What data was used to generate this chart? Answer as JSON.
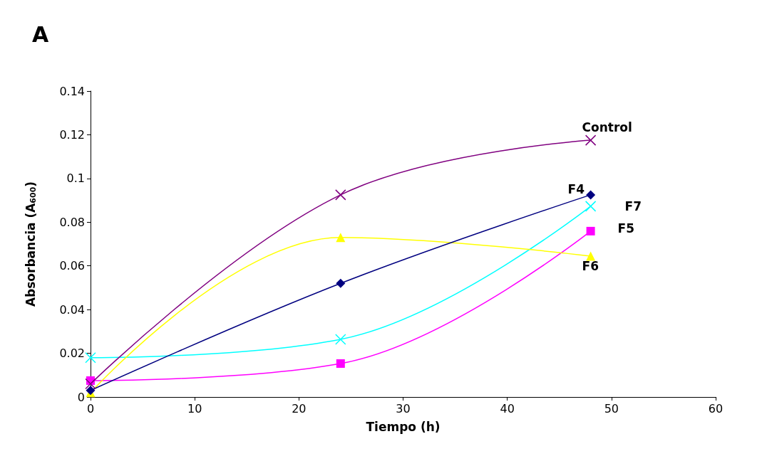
{
  "chart_data": {
    "type": "line",
    "title": "A",
    "xlabel": "Tiempo (h)",
    "ylabel": "Absorbancia (A$_{600}$)",
    "x": [
      0,
      24,
      48
    ],
    "series": [
      {
        "name": "Control",
        "color": "#800080",
        "marker": "cross",
        "values": [
          0.006,
          0.0925,
          0.1175
        ]
      },
      {
        "name": "F4",
        "color": "#000080",
        "marker": "diamond",
        "values": [
          0.003,
          0.052,
          0.0925
        ]
      },
      {
        "name": "F6",
        "color": "#ffff00",
        "marker": "triangle",
        "values": [
          0.002,
          0.073,
          0.0645
        ]
      },
      {
        "name": "F7",
        "color": "#00ffff",
        "marker": "cross",
        "values": [
          0.018,
          0.0264,
          0.0873
        ]
      },
      {
        "name": "F5",
        "color": "#ff00ff",
        "marker": "square",
        "values": [
          0.0075,
          0.0153,
          0.0759
        ]
      }
    ],
    "xlim": [
      0,
      60
    ],
    "xticks": [
      0,
      10,
      20,
      30,
      40,
      50,
      60
    ],
    "ylim": [
      0,
      0.14
    ],
    "yticks": [
      0,
      0.02,
      0.04,
      0.06,
      0.08,
      0.1,
      0.12,
      0.14
    ],
    "grid": false,
    "legend": false,
    "line_style": "solid"
  }
}
